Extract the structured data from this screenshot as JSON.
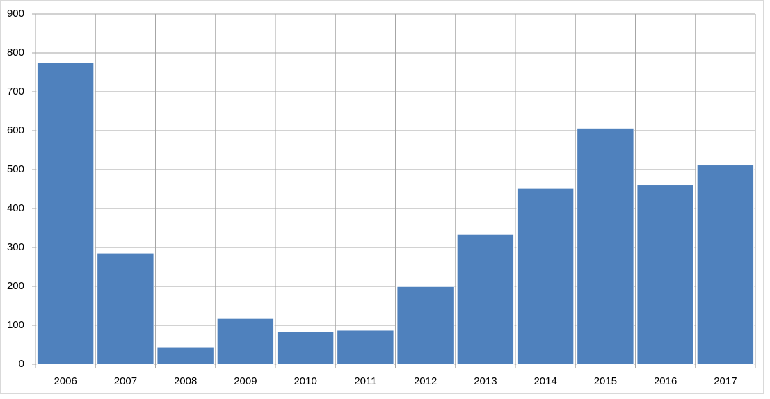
{
  "chart_data": {
    "type": "bar",
    "categories": [
      "2006",
      "2007",
      "2008",
      "2009",
      "2010",
      "2011",
      "2012",
      "2013",
      "2014",
      "2015",
      "2016",
      "2017"
    ],
    "values": [
      775,
      286,
      45,
      118,
      84,
      88,
      200,
      334,
      452,
      607,
      462,
      512
    ],
    "color": "#4f81bd",
    "ylim": [
      0,
      900
    ],
    "yticks": [
      0,
      100,
      200,
      300,
      400,
      500,
      600,
      700,
      800,
      900
    ],
    "grid": true
  }
}
